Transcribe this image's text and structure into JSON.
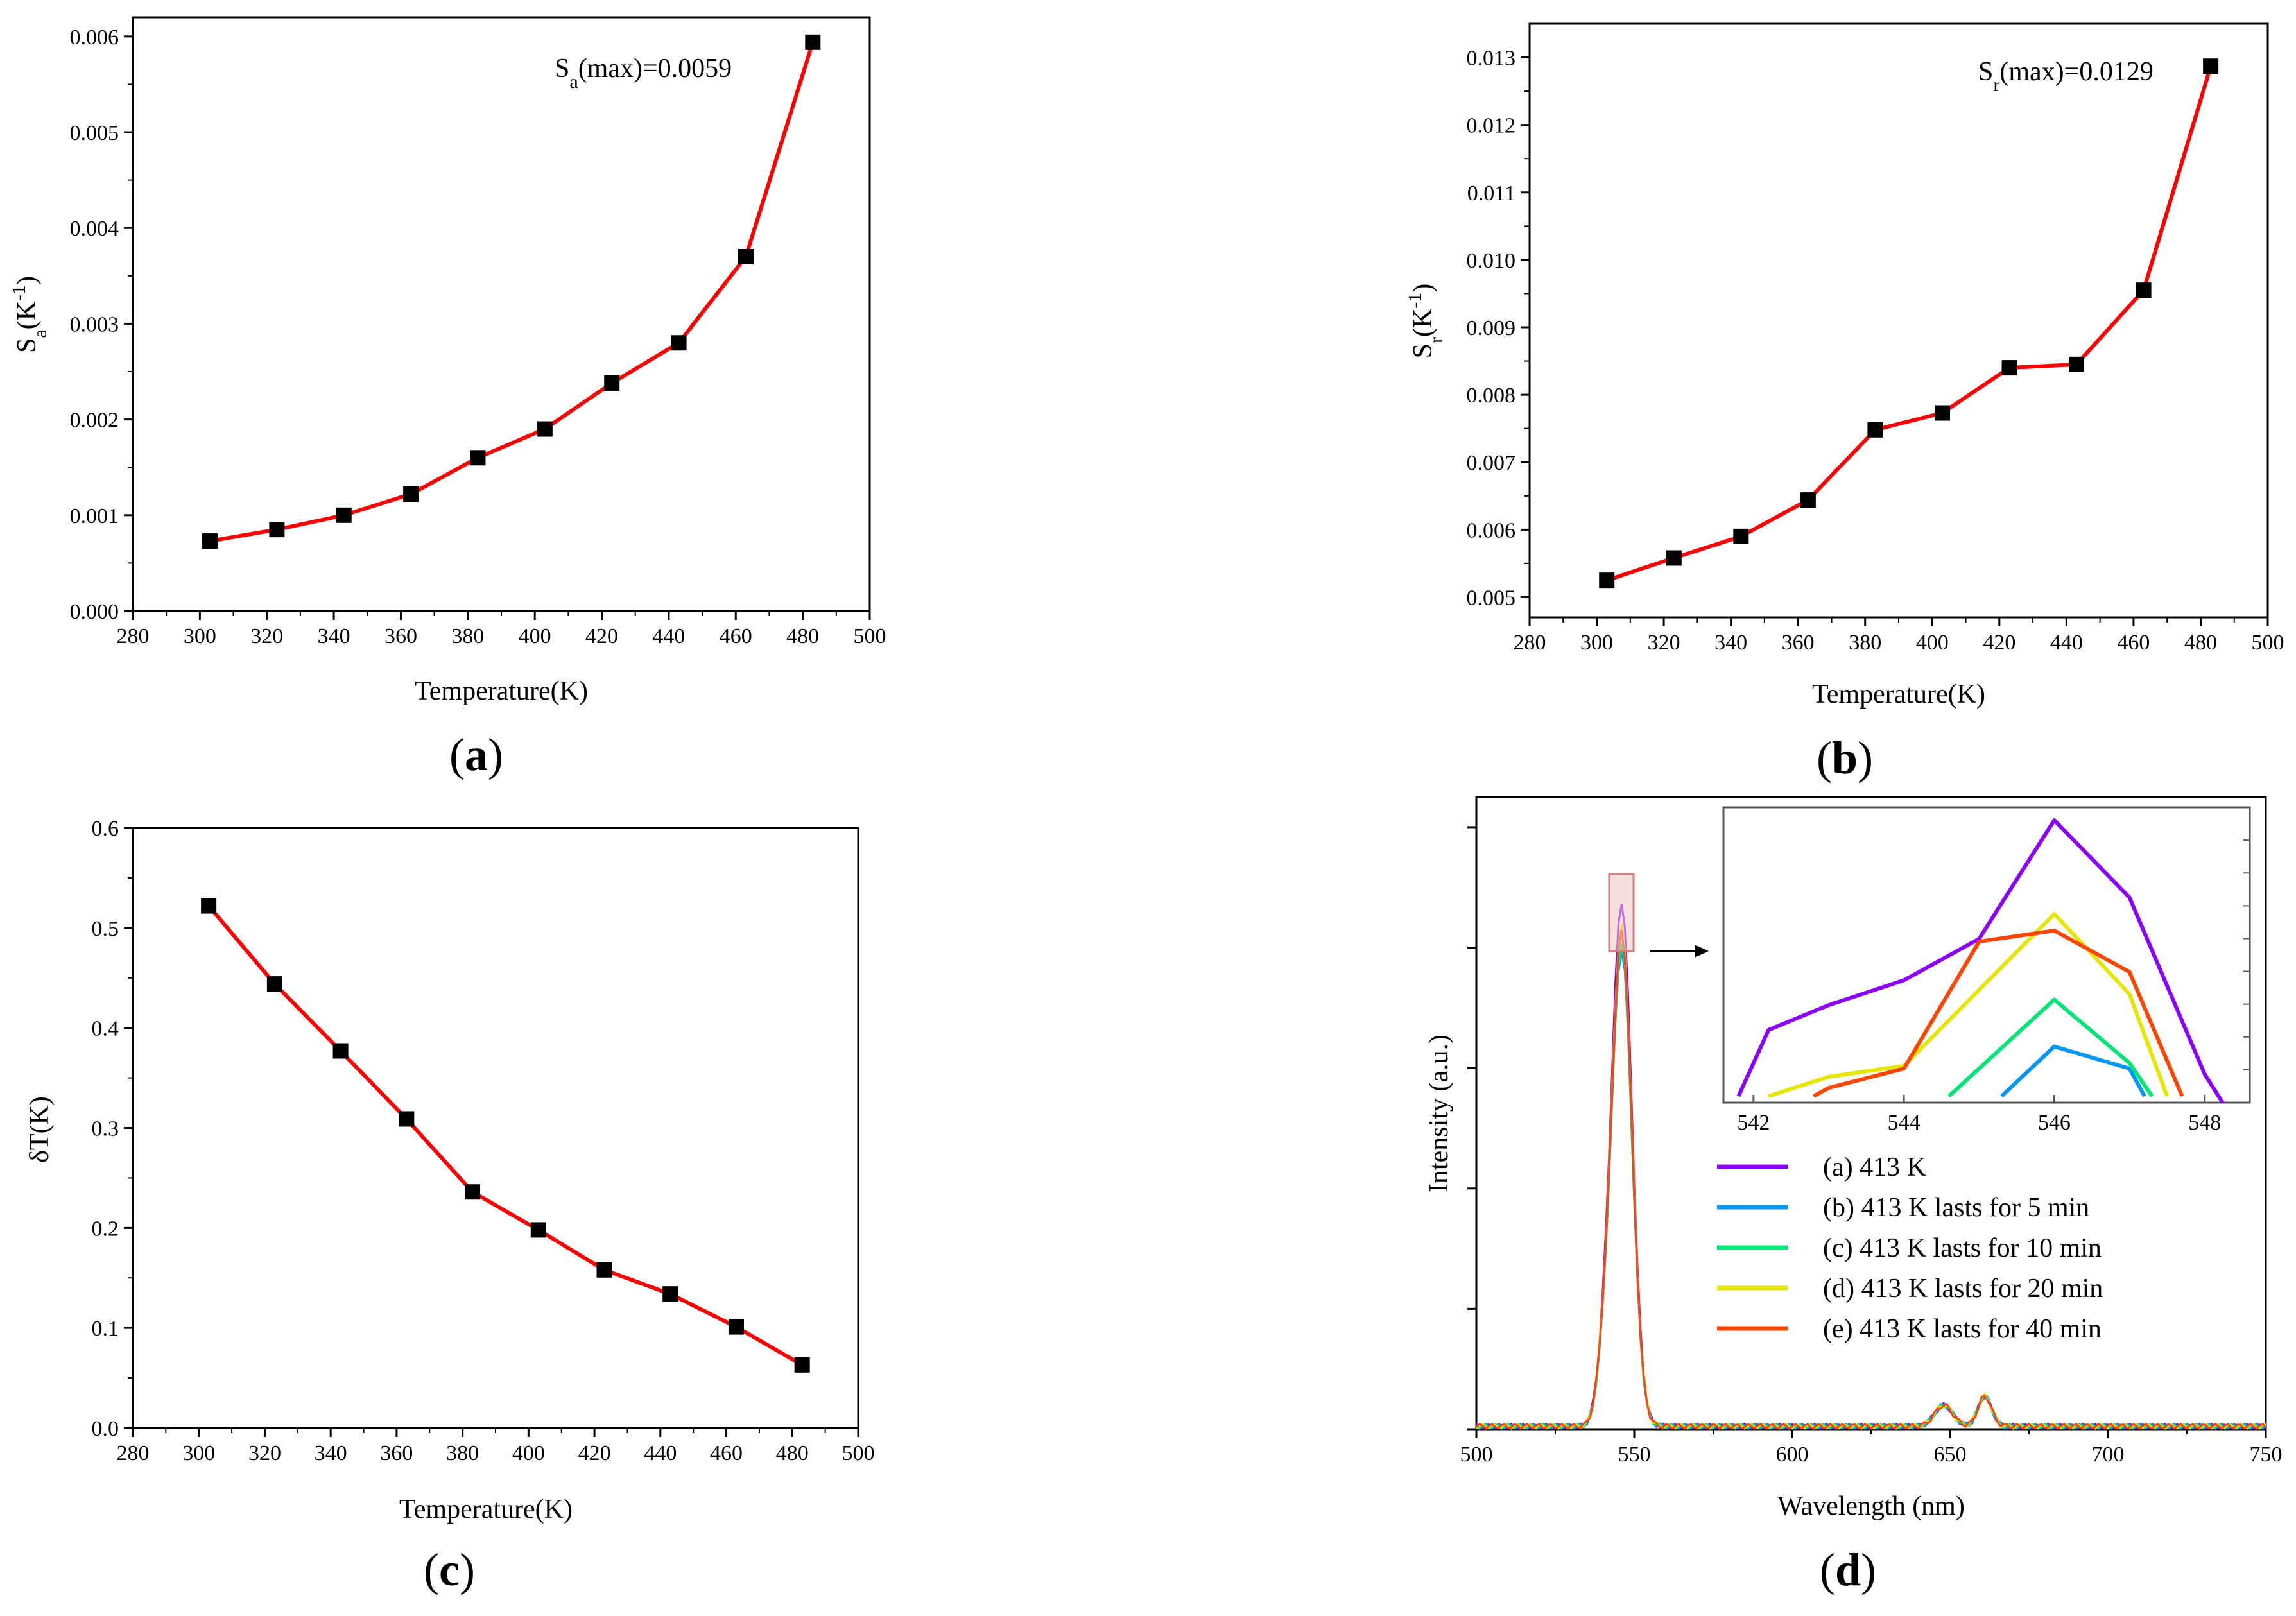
{
  "chart_data": [
    {
      "id": "a",
      "type": "line",
      "panel_label": "a",
      "xlabel": "Temperature(K)",
      "ylabel_main": "S",
      "ylabel_sub": "a",
      "ylabel_rest": "(K",
      "ylabel_sup": "-1",
      "ylabel_close": ")",
      "annotation_main": "S",
      "annotation_sub": "a",
      "annotation_rest": "(max)=0.0059",
      "xlim": [
        280,
        500
      ],
      "ylim": [
        0,
        0.0062
      ],
      "xticks": [
        "280",
        "300",
        "320",
        "340",
        "360",
        "380",
        "400",
        "420",
        "440",
        "460",
        "480",
        "500"
      ],
      "yticks": [
        "0.000",
        "0.001",
        "0.002",
        "0.003",
        "0.004",
        "0.005",
        "0.006"
      ],
      "ytick_values": [
        0,
        0.001,
        0.002,
        0.003,
        0.004,
        0.005,
        0.006
      ],
      "x": [
        303,
        323,
        343,
        363,
        383,
        403,
        423,
        443,
        463,
        483
      ],
      "y": [
        0.00073,
        0.00085,
        0.001,
        0.00122,
        0.0016,
        0.0019,
        0.00238,
        0.0028,
        0.0037,
        0.00594
      ],
      "line_color": "#ff0000",
      "marker_color": "#000000"
    },
    {
      "id": "b",
      "type": "line",
      "panel_label": "b",
      "xlabel": "Temperature(K)",
      "ylabel_main": "S",
      "ylabel_sub": "r",
      "ylabel_rest": "(K",
      "ylabel_sup": "-1",
      "ylabel_close": ")",
      "annotation_main": "S",
      "annotation_sub": "r",
      "annotation_rest": "(max)=0.0129",
      "xlim": [
        280,
        500
      ],
      "ylim": [
        0.0047,
        0.0135
      ],
      "xticks": [
        "280",
        "300",
        "320",
        "340",
        "360",
        "380",
        "400",
        "420",
        "440",
        "460",
        "480",
        "500"
      ],
      "yticks": [
        "0.005",
        "0.006",
        "0.007",
        "0.008",
        "0.009",
        "0.010",
        "0.011",
        "0.012",
        "0.013"
      ],
      "ytick_values": [
        0.005,
        0.006,
        0.007,
        0.008,
        0.009,
        0.01,
        0.011,
        0.012,
        0.013
      ],
      "x": [
        303,
        323,
        343,
        363,
        383,
        403,
        423,
        443,
        463,
        483
      ],
      "y": [
        0.00525,
        0.00558,
        0.0059,
        0.00644,
        0.00748,
        0.00773,
        0.0084,
        0.00845,
        0.00955,
        0.01287
      ],
      "line_color": "#ff0000",
      "marker_color": "#000000"
    },
    {
      "id": "c",
      "type": "line",
      "panel_label": "c",
      "xlabel": "Temperature(K)",
      "ylabel_main": "δT(K)",
      "xlim": [
        280,
        500
      ],
      "ylim": [
        0,
        0.6
      ],
      "xticks": [
        "280",
        "300",
        "320",
        "340",
        "360",
        "380",
        "400",
        "420",
        "440",
        "460",
        "480",
        "500"
      ],
      "yticks": [
        "0.0",
        "0.1",
        "0.2",
        "0.3",
        "0.4",
        "0.5",
        "0.6"
      ],
      "ytick_values": [
        0,
        0.1,
        0.2,
        0.3,
        0.4,
        0.5,
        0.6
      ],
      "x": [
        303,
        323,
        343,
        363,
        383,
        403,
        423,
        443,
        463,
        483
      ],
      "y": [
        0.522,
        0.444,
        0.377,
        0.309,
        0.236,
        0.198,
        0.158,
        0.134,
        0.101,
        0.063
      ],
      "line_color": "#ff0000",
      "marker_color": "#000000"
    },
    {
      "id": "d",
      "type": "line",
      "panel_label": "d",
      "xlabel": "Wavelength (nm)",
      "ylabel_main": "Intensity (a.u.)",
      "xlim": [
        500,
        750
      ],
      "ylim": [
        0,
        1.05
      ],
      "xticks": [
        "500",
        "550",
        "600",
        "650",
        "700",
        "750"
      ],
      "series": [
        {
          "name": "(a) 413 K",
          "color": "#8b00ff",
          "peak": 0.87
        },
        {
          "name": "(b) 413 K lasts for 5 min",
          "color": "#0096ff",
          "peak": 0.79
        },
        {
          "name": "(c) 413 K lasts for 10 min",
          "color": "#00e676",
          "peak": 0.8
        },
        {
          "name": "(d) 413 K lasts for 20 min",
          "color": "#e6e600",
          "peak": 0.83
        },
        {
          "name": "(e) 413 K lasts for 40 min",
          "color": "#ff4500",
          "peak": 0.82
        }
      ],
      "inset": {
        "xlim": [
          541.6,
          548.6
        ],
        "ylim": [
          0,
          1
        ],
        "xticks": [
          "542",
          "544",
          "546",
          "548"
        ],
        "series": [
          {
            "x": [
              541.8,
              542.2,
              543,
              544,
              545,
              546,
              547,
              548,
              548.3
            ],
            "y": [
              0.0,
              0.24,
              0.33,
              0.42,
              0.57,
              1.0,
              0.72,
              0.08,
              -0.05
            ]
          },
          {
            "x": [
              545.3,
              546,
              547,
              547.2
            ],
            "y": [
              0.0,
              0.18,
              0.1,
              0.0
            ]
          },
          {
            "x": [
              544.6,
              545,
              546,
              547,
              547.3
            ],
            "y": [
              0.0,
              0.1,
              0.35,
              0.12,
              0.0
            ]
          },
          {
            "x": [
              542.2,
              543,
              544,
              546,
              547,
              547.5
            ],
            "y": [
              0.0,
              0.07,
              0.11,
              0.66,
              0.37,
              0.0
            ]
          },
          {
            "x": [
              542.8,
              543,
              544,
              545,
              546,
              547,
              547.7
            ],
            "y": [
              0.0,
              0.03,
              0.1,
              0.56,
              0.6,
              0.45,
              0.0
            ]
          }
        ]
      }
    }
  ],
  "arrow_label": "→"
}
